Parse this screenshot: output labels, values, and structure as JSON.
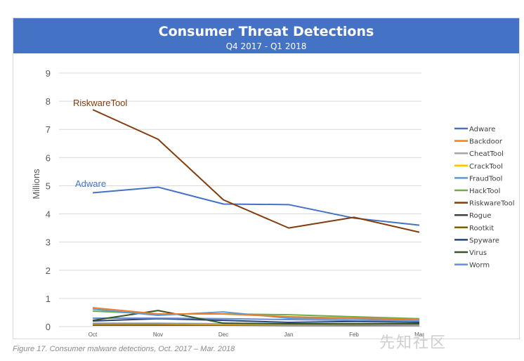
{
  "header": {
    "title": "Consumer Threat Detections",
    "subtitle": "Q4 2017 - Q1 2018"
  },
  "caption": "Figure 17. Consumer malware detections, Oct. 2017 – Mar. 2018",
  "watermark": "先知社区",
  "colors": {
    "banner": "#4472c4"
  },
  "chart_data": {
    "type": "line",
    "title": "Consumer Threat Detections",
    "subtitle": "Q4 2017 - Q1 2018",
    "xlabel": "",
    "ylabel": "Millions",
    "ylim": [
      0,
      9
    ],
    "yticks": [
      "0",
      "1",
      "2",
      "3",
      "4",
      "5",
      "6",
      "7",
      "8",
      "9"
    ],
    "categories": [
      "Oct",
      "Nov",
      "Dec",
      "Jan",
      "Feb",
      "Mar"
    ],
    "grid": true,
    "legend_position": "right",
    "annotations": [
      {
        "text": "RiskwareTool",
        "series": "RiskwareTool",
        "color": "#843c0c"
      },
      {
        "text": "Adware",
        "series": "Adware",
        "color": "#4472c4"
      }
    ],
    "series": [
      {
        "name": "Adware",
        "color": "#4472c4",
        "values": [
          4.75,
          4.95,
          4.35,
          4.33,
          3.85,
          3.6
        ]
      },
      {
        "name": "Backdoor",
        "color": "#ed7d31",
        "values": [
          0.67,
          0.45,
          0.45,
          0.35,
          0.3,
          0.25
        ]
      },
      {
        "name": "CheatTool",
        "color": "#a5a5a5",
        "values": [
          0.12,
          0.12,
          0.1,
          0.08,
          0.08,
          0.07
        ]
      },
      {
        "name": "CrackTool",
        "color": "#ffc000",
        "values": [
          0.08,
          0.08,
          0.07,
          0.06,
          0.06,
          0.05
        ]
      },
      {
        "name": "FraudTool",
        "color": "#5b9bd5",
        "values": [
          0.62,
          0.4,
          0.52,
          0.3,
          0.28,
          0.2
        ]
      },
      {
        "name": "HackTool",
        "color": "#70ad47",
        "values": [
          0.55,
          0.45,
          0.45,
          0.42,
          0.35,
          0.28
        ]
      },
      {
        "name": "RiskwareTool",
        "color": "#843c0c",
        "values": [
          7.7,
          6.65,
          4.5,
          3.5,
          3.88,
          3.35
        ]
      },
      {
        "name": "Rogue",
        "color": "#404040",
        "values": [
          0.05,
          0.05,
          0.05,
          0.04,
          0.04,
          0.04
        ]
      },
      {
        "name": "Rootkit",
        "color": "#806000",
        "values": [
          0.1,
          0.1,
          0.09,
          0.08,
          0.07,
          0.06
        ]
      },
      {
        "name": "Spyware",
        "color": "#264478",
        "values": [
          0.2,
          0.28,
          0.22,
          0.15,
          0.18,
          0.15
        ]
      },
      {
        "name": "Virus",
        "color": "#375623",
        "values": [
          0.22,
          0.57,
          0.12,
          0.1,
          0.1,
          0.1
        ]
      },
      {
        "name": "Worm",
        "color": "#698ed0",
        "values": [
          0.3,
          0.3,
          0.28,
          0.25,
          0.22,
          0.2
        ]
      }
    ]
  }
}
